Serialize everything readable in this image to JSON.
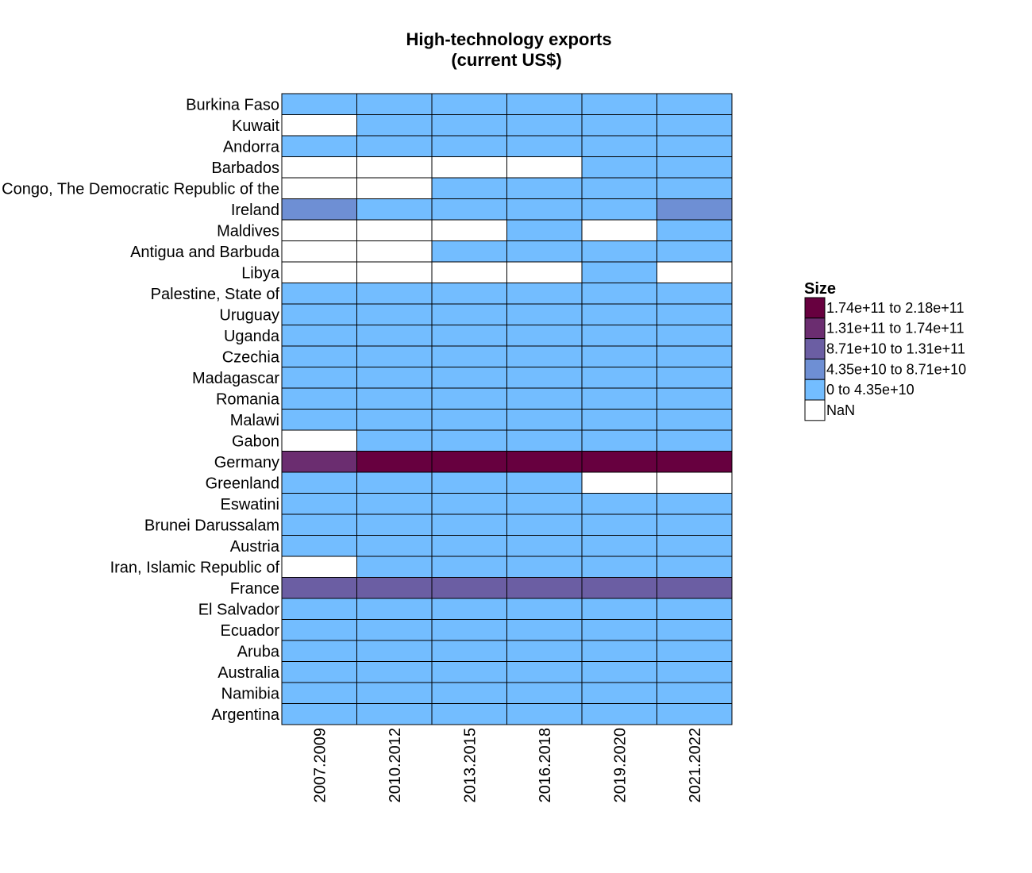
{
  "chart_data": {
    "type": "heatmap",
    "title": [
      "High-technology exports",
      "(current US$)"
    ],
    "xlabel": "",
    "ylabel": "",
    "columns": [
      "2007.2009",
      "2010.2012",
      "2013.2015",
      "2016.2018",
      "2019.2020",
      "2021.2022"
    ],
    "rows": [
      "Burkina Faso",
      "Kuwait",
      "Andorra",
      "Barbados",
      "Congo, The Democratic Republic of the",
      "Ireland",
      "Maldives",
      "Antigua and Barbuda",
      "Libya",
      "Palestine, State of",
      "Uruguay",
      "Uganda",
      "Czechia",
      "Madagascar",
      "Romania",
      "Malawi",
      "Gabon",
      "Germany",
      "Greenland",
      "Eswatini",
      "Brunei Darussalam",
      "Austria",
      "Iran, Islamic Republic of",
      "France",
      "El Salvador",
      "Ecuador",
      "Aruba",
      "Australia",
      "Namibia",
      "Argentina"
    ],
    "cells": [
      [
        0,
        0,
        0,
        0,
        0,
        0
      ],
      [
        null,
        0,
        0,
        0,
        0,
        0
      ],
      [
        0,
        0,
        0,
        0,
        0,
        0
      ],
      [
        null,
        null,
        null,
        null,
        0,
        0
      ],
      [
        null,
        null,
        0,
        0,
        0,
        0
      ],
      [
        1,
        0,
        0,
        0,
        0,
        1
      ],
      [
        null,
        null,
        null,
        0,
        null,
        0
      ],
      [
        null,
        null,
        0,
        0,
        0,
        0
      ],
      [
        null,
        null,
        null,
        null,
        0,
        null
      ],
      [
        0,
        0,
        0,
        0,
        0,
        0
      ],
      [
        0,
        0,
        0,
        0,
        0,
        0
      ],
      [
        0,
        0,
        0,
        0,
        0,
        0
      ],
      [
        0,
        0,
        0,
        0,
        0,
        0
      ],
      [
        0,
        0,
        0,
        0,
        0,
        0
      ],
      [
        0,
        0,
        0,
        0,
        0,
        0
      ],
      [
        0,
        0,
        0,
        0,
        0,
        0
      ],
      [
        null,
        0,
        0,
        0,
        0,
        0
      ],
      [
        3,
        4,
        4,
        4,
        4,
        4
      ],
      [
        0,
        0,
        0,
        0,
        null,
        null
      ],
      [
        0,
        0,
        0,
        0,
        0,
        0
      ],
      [
        0,
        0,
        0,
        0,
        0,
        0
      ],
      [
        0,
        0,
        0,
        0,
        0,
        0
      ],
      [
        null,
        0,
        0,
        0,
        0,
        0
      ],
      [
        2,
        2,
        2,
        2,
        2,
        2
      ],
      [
        0,
        0,
        0,
        0,
        0,
        0
      ],
      [
        0,
        0,
        0,
        0,
        0,
        0
      ],
      [
        0,
        0,
        0,
        0,
        0,
        0
      ],
      [
        0,
        0,
        0,
        0,
        0,
        0
      ],
      [
        0,
        0,
        0,
        0,
        0,
        0
      ],
      [
        0,
        0,
        0,
        0,
        0,
        0
      ]
    ],
    "legend": {
      "title": "Size",
      "placement": "right",
      "bins": [
        {
          "label": "1.74e+11 to 2.18e+11",
          "min": 174000000000.0,
          "max": 218000000000.0,
          "color": "#67003f"
        },
        {
          "label": "1.31e+11 to 1.74e+11",
          "min": 131000000000.0,
          "max": 174000000000.0,
          "color": "#6b2d70"
        },
        {
          "label": "8.71e+10 to 1.31e+11",
          "min": 87100000000.0,
          "max": 131000000000.0,
          "color": "#6b5ea3"
        },
        {
          "label": "4.35e+10 to 8.71e+10",
          "min": 43500000000.0,
          "max": 87100000000.0,
          "color": "#6e8fd4"
        },
        {
          "label": "0 to 4.35e+10",
          "min": 0,
          "max": 43500000000.0,
          "color": "#73bdff"
        },
        {
          "label": "NaN",
          "min": null,
          "max": null,
          "color": "#ffffff"
        }
      ]
    },
    "cell_bin_index_order": [
      "0 to 4.35e+10",
      "4.35e+10 to 8.71e+10",
      "8.71e+10 to 1.31e+11",
      "1.31e+11 to 1.74e+11",
      "1.74e+11 to 2.18e+11"
    ],
    "grid": true
  }
}
